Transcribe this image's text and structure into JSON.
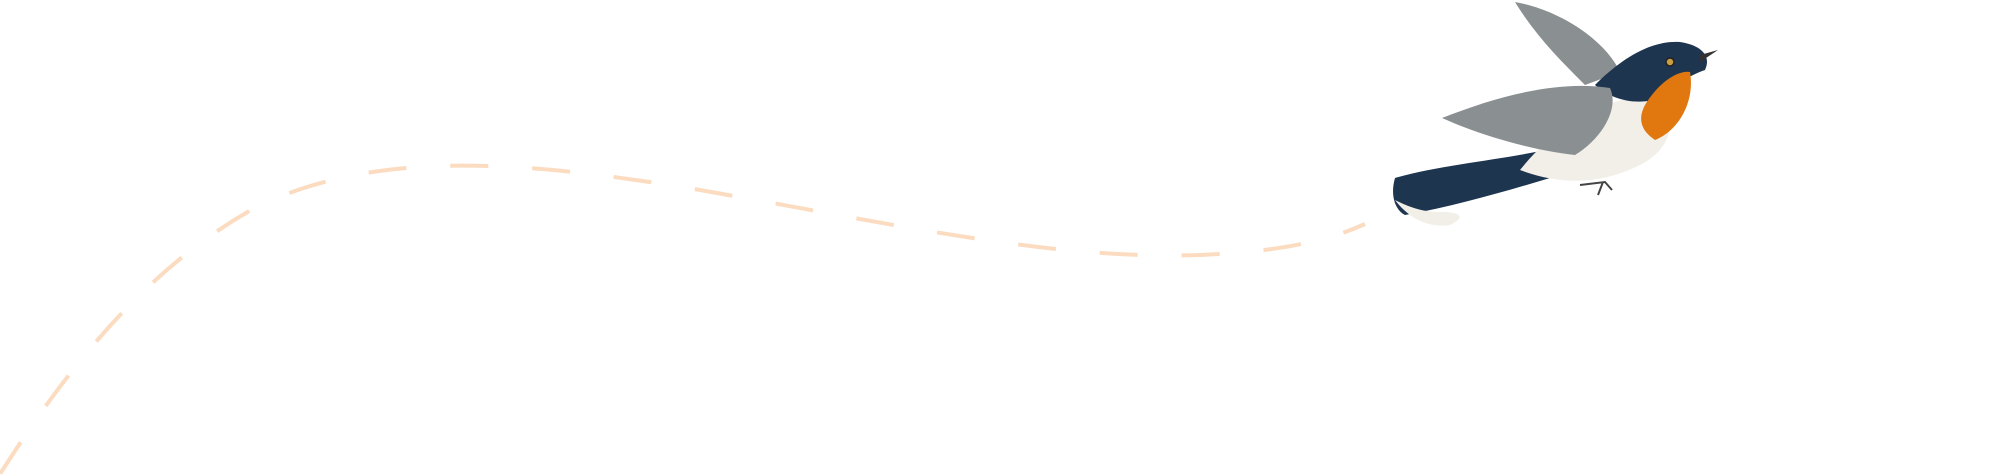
{
  "colors": {
    "background": "#ffffff",
    "flight_path": "#fcdcc0",
    "bird_throat": "#e0780f",
    "bird_back": "#1e3550",
    "bird_wing": "#8a8f92",
    "bird_belly": "#f2efe8"
  },
  "illustration": {
    "subject": "bird-in-flight",
    "path_style": "dashed"
  }
}
